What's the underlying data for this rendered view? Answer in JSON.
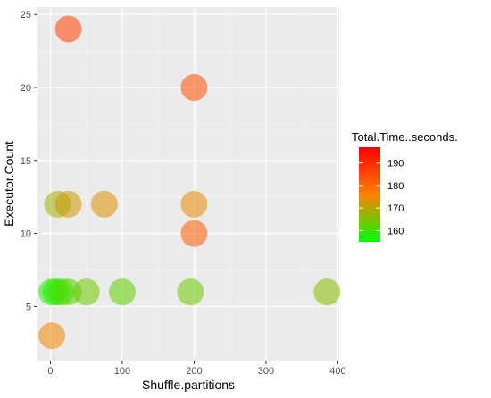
{
  "chart_data": {
    "type": "scatter",
    "title": "",
    "xlabel": "Shuffle.partitions",
    "ylabel": "Executor.Count",
    "xlim": [
      -18,
      402
    ],
    "ylim": [
      1.3,
      25.5
    ],
    "x_ticks": [
      0,
      100,
      200,
      300,
      400
    ],
    "y_ticks": [
      5,
      10,
      15,
      20,
      25
    ],
    "grid": true,
    "legend_position": "right",
    "color_by": "Total.Time..seconds.",
    "legend": {
      "title": "Total.Time..seconds.",
      "ticks": [
        160,
        170,
        180,
        190
      ],
      "range": [
        155,
        197
      ],
      "colors": [
        "#00ff00",
        "#ff8000",
        "#ff0000"
      ]
    },
    "points": [
      {
        "x": 25,
        "y": 24,
        "value": 186
      },
      {
        "x": 200,
        "y": 20,
        "value": 184
      },
      {
        "x": 10,
        "y": 12,
        "value": 168
      },
      {
        "x": 25,
        "y": 12,
        "value": 172
      },
      {
        "x": 75,
        "y": 12,
        "value": 173
      },
      {
        "x": 200,
        "y": 12,
        "value": 174
      },
      {
        "x": 200,
        "y": 10,
        "value": 182
      },
      {
        "x": 2,
        "y": 6,
        "value": 158
      },
      {
        "x": 8,
        "y": 6,
        "value": 158
      },
      {
        "x": 15,
        "y": 6,
        "value": 160
      },
      {
        "x": 25,
        "y": 6,
        "value": 162
      },
      {
        "x": 50,
        "y": 6,
        "value": 164
      },
      {
        "x": 100,
        "y": 6,
        "value": 163
      },
      {
        "x": 195,
        "y": 6,
        "value": 164
      },
      {
        "x": 385,
        "y": 6,
        "value": 166
      },
      {
        "x": 2,
        "y": 3,
        "value": 175
      }
    ]
  },
  "colors": {
    "panel_background": "#ebebeb",
    "grid_major": "#ffffff",
    "grid_minor": "#f5f5f5"
  }
}
